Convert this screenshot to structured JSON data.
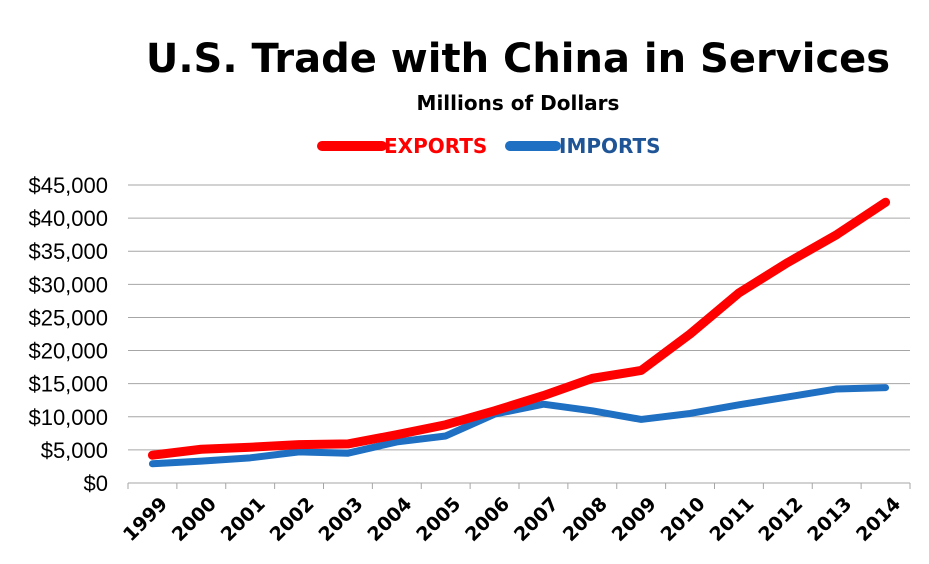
{
  "chart_data": {
    "type": "line",
    "title": "U.S. Trade with China in Services",
    "subtitle": "Millions of Dollars",
    "categories": [
      "1999",
      "2000",
      "2001",
      "2002",
      "2003",
      "2004",
      "2005",
      "2006",
      "2007",
      "2008",
      "2009",
      "2010",
      "2011",
      "2012",
      "2013",
      "2014"
    ],
    "series": [
      {
        "name": "EXPORTS",
        "color": "#ff0000",
        "values": [
          4200,
          5100,
          5400,
          5800,
          5900,
          7300,
          8800,
          10900,
          13200,
          15800,
          17000,
          22500,
          28700,
          33300,
          37500,
          42400
        ]
      },
      {
        "name": "IMPORTS",
        "color": "#1f6fc2",
        "values": [
          2900,
          3300,
          3800,
          4700,
          4500,
          6200,
          7100,
          10400,
          11900,
          10900,
          9600,
          10500,
          11800,
          13000,
          14200,
          14400
        ]
      }
    ],
    "yticks": [
      "$0",
      "$5,000",
      "$10,000",
      "$15,000",
      "$20,000",
      "$25,000",
      "$30,000",
      "$35,000",
      "$40,000",
      "$45,000"
    ],
    "ylim": [
      0,
      45000
    ],
    "ystep": 5000,
    "grid": true,
    "legend_position": "top-center"
  }
}
